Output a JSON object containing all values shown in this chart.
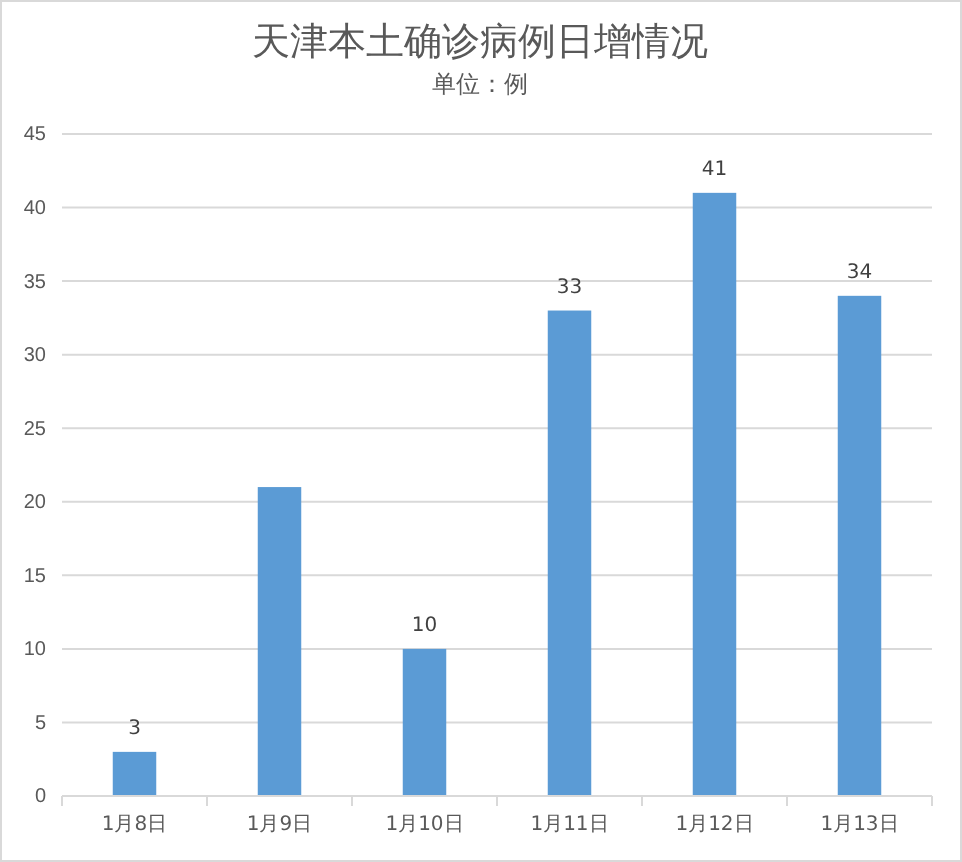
{
  "chart_data": {
    "type": "bar",
    "title": "天津本土确诊病例日增情况",
    "subtitle": "单位：例",
    "categories": [
      "1月8日",
      "1月9日",
      "1月10日",
      "1月11日",
      "1月12日",
      "1月13日"
    ],
    "values": [
      3,
      21,
      10,
      33,
      41,
      34
    ],
    "color": "#5b9bd5",
    "value_labels": [
      "3",
      null,
      "10",
      "33",
      "41",
      "34"
    ],
    "ylim": [
      0,
      45
    ],
    "yticks": [
      0,
      5,
      10,
      15,
      20,
      25,
      30,
      35,
      40,
      45
    ],
    "grid": "y"
  }
}
